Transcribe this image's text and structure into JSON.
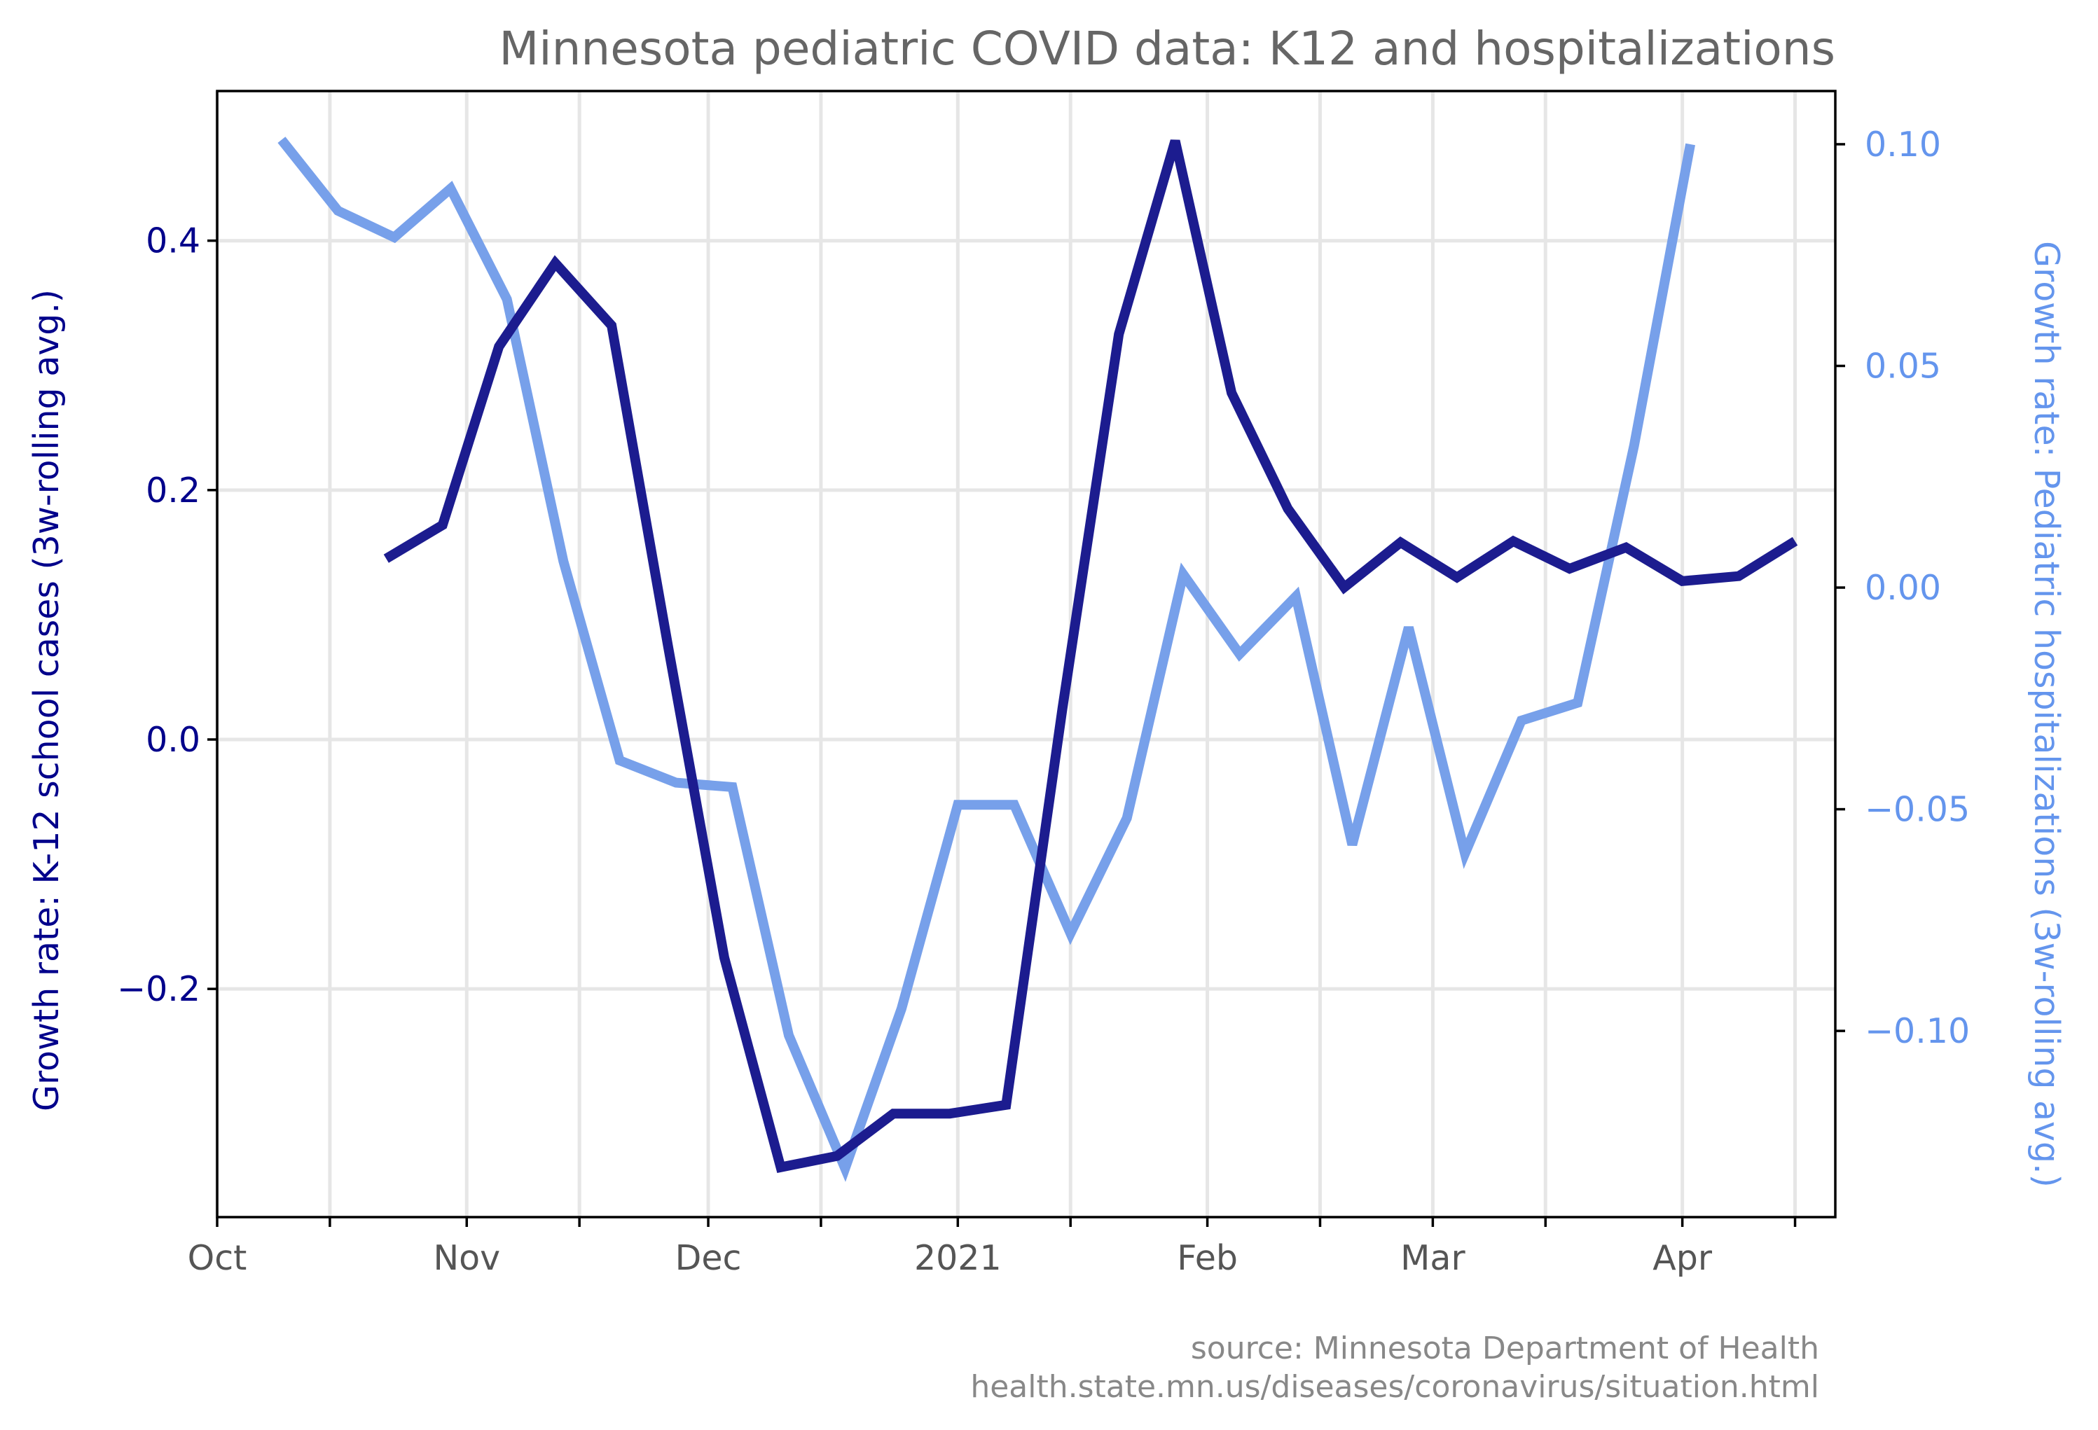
{
  "chart_data": {
    "type": "line",
    "title": "Minnesota pediatric COVID data: K12 and hospitalizations",
    "xlim": [
      "2020-10-01",
      "2021-04-20"
    ],
    "x_ticks": [
      {
        "date": "2020-10-01",
        "label": "Oct"
      },
      {
        "date": "2020-10-15",
        "label": ""
      },
      {
        "date": "2020-11-01",
        "label": "Nov"
      },
      {
        "date": "2020-11-15",
        "label": ""
      },
      {
        "date": "2020-12-01",
        "label": "Dec"
      },
      {
        "date": "2020-12-15",
        "label": ""
      },
      {
        "date": "2021-01-01",
        "label": "2021"
      },
      {
        "date": "2021-01-15",
        "label": ""
      },
      {
        "date": "2021-02-01",
        "label": "Feb"
      },
      {
        "date": "2021-02-15",
        "label": ""
      },
      {
        "date": "2021-03-01",
        "label": "Mar"
      },
      {
        "date": "2021-03-15",
        "label": ""
      },
      {
        "date": "2021-04-01",
        "label": "Apr"
      },
      {
        "date": "2021-04-15",
        "label": ""
      }
    ],
    "axes": {
      "left": {
        "label": "Growth rate: K-12 school cases (3w-rolling avg.)",
        "ylim": [
          -0.383,
          0.52
        ],
        "ticks": [
          {
            "value": 0.4,
            "label": "0.4"
          },
          {
            "value": 0.2,
            "label": "0.2"
          },
          {
            "value": 0.0,
            "label": "0.0"
          },
          {
            "value": -0.2,
            "label": "−0.2"
          }
        ],
        "color": "#00008b"
      },
      "right": {
        "label": "Growth rate: Pediatric hospitalizations (3w-rolling avg.)",
        "ylim": [
          -0.142,
          0.112
        ],
        "ticks": [
          {
            "value": 0.1,
            "label": "0.10"
          },
          {
            "value": 0.05,
            "label": "0.05"
          },
          {
            "value": 0.0,
            "label": "0.00"
          },
          {
            "value": -0.05,
            "label": "−0.05"
          },
          {
            "value": -0.1,
            "label": "−0.10"
          }
        ],
        "color": "#6495ed"
      }
    },
    "grid": true,
    "series": [
      {
        "axis": "left",
        "color": "#1c1c8f",
        "points": [
          [
            "2020-10-22",
            0.145
          ],
          [
            "2020-10-29",
            0.172
          ],
          [
            "2020-11-05",
            0.315
          ],
          [
            "2020-11-12",
            0.382
          ],
          [
            "2020-11-19",
            0.332
          ],
          [
            "2020-11-26",
            0.075
          ],
          [
            "2020-12-03",
            -0.175
          ],
          [
            "2020-12-10",
            -0.343
          ],
          [
            "2020-12-17",
            -0.334
          ],
          [
            "2020-12-24",
            -0.3
          ],
          [
            "2020-12-31",
            -0.3
          ],
          [
            "2021-01-07",
            -0.293
          ],
          [
            "2021-01-14",
            0.025
          ],
          [
            "2021-01-21",
            0.325
          ],
          [
            "2021-01-28",
            0.48
          ],
          [
            "2021-02-04",
            0.278
          ],
          [
            "2021-02-11",
            0.185
          ],
          [
            "2021-02-18",
            0.122
          ],
          [
            "2021-02-25",
            0.158
          ],
          [
            "2021-03-04",
            0.13
          ],
          [
            "2021-03-11",
            0.159
          ],
          [
            "2021-03-18",
            0.137
          ],
          [
            "2021-03-25",
            0.154
          ],
          [
            "2021-04-01",
            0.127
          ],
          [
            "2021-04-08",
            0.131
          ],
          [
            "2021-04-15",
            0.159
          ]
        ]
      },
      {
        "axis": "right",
        "color": "#77a0ea",
        "points": [
          [
            "2020-10-09",
            0.101
          ],
          [
            "2020-10-16",
            0.085
          ],
          [
            "2020-10-23",
            0.079
          ],
          [
            "2020-10-30",
            0.09
          ],
          [
            "2020-11-06",
            0.065
          ],
          [
            "2020-11-13",
            0.006
          ],
          [
            "2020-11-20",
            -0.039
          ],
          [
            "2020-11-27",
            -0.044
          ],
          [
            "2020-12-04",
            -0.045
          ],
          [
            "2020-12-11",
            -0.101
          ],
          [
            "2020-12-18",
            -0.131
          ],
          [
            "2020-12-25",
            -0.095
          ],
          [
            "2021-01-01",
            -0.049
          ],
          [
            "2021-01-08",
            -0.049
          ],
          [
            "2021-01-15",
            -0.078
          ],
          [
            "2021-01-22",
            -0.052
          ],
          [
            "2021-01-29",
            0.003
          ],
          [
            "2021-02-05",
            -0.015
          ],
          [
            "2021-02-12",
            -0.002
          ],
          [
            "2021-02-19",
            -0.058
          ],
          [
            "2021-02-26",
            -0.009
          ],
          [
            "2021-03-05",
            -0.06
          ],
          [
            "2021-03-12",
            -0.03
          ],
          [
            "2021-03-19",
            -0.026
          ],
          [
            "2021-03-26",
            0.032
          ],
          [
            "2021-04-02",
            0.1
          ]
        ]
      }
    ],
    "source_lines": [
      "source: Minnesota Department of Health",
      "health.state.mn.us/diseases/coronavirus/situation.html"
    ]
  }
}
